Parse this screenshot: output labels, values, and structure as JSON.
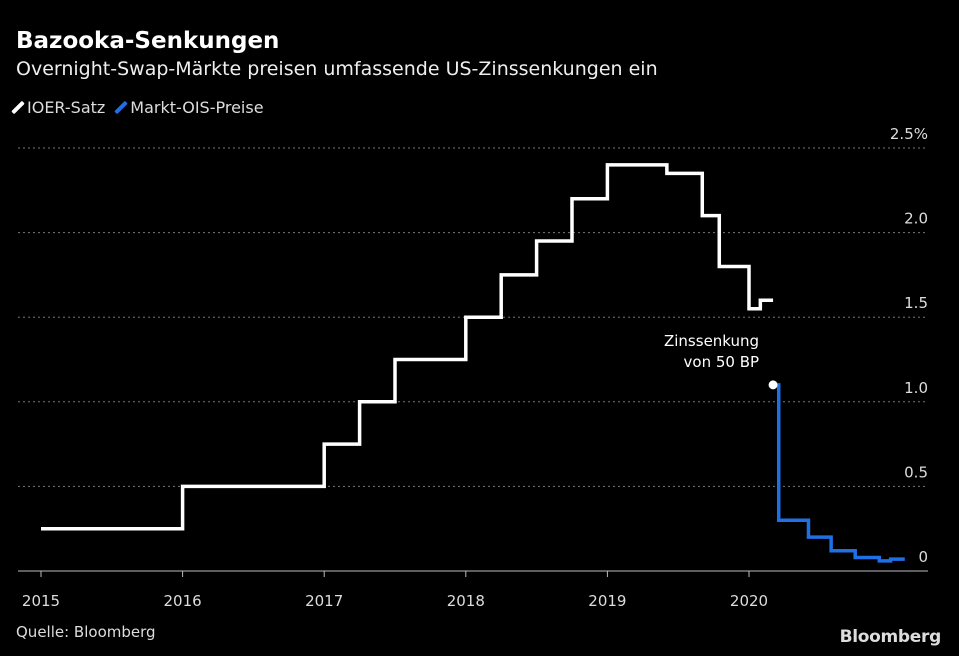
{
  "chart_data": {
    "type": "line",
    "title": "Bazooka-Senkungen",
    "subtitle": "Overnight-Swap-Märkte preisen umfassende US-Zinssenkungen ein",
    "xlabel": "",
    "ylabel": "",
    "x_ticks": [
      "2015",
      "2016",
      "2017",
      "2018",
      "2019",
      "2020"
    ],
    "y_ticks": [
      "0",
      "0.5",
      "1.0",
      "1.5",
      "2.0",
      "2.5%"
    ],
    "xlim": [
      2015.0,
      2021.25
    ],
    "ylim": [
      0,
      2.5
    ],
    "grid": true,
    "legend_position": "top-left",
    "series": [
      {
        "name": "IOER-Satz",
        "color": "#ffffff",
        "step": true,
        "x": [
          2015.0,
          2015.92,
          2016.0,
          2016.96,
          2017.0,
          2017.21,
          2017.25,
          2017.45,
          2017.5,
          2017.96,
          2018.0,
          2018.21,
          2018.25,
          2018.46,
          2018.5,
          2018.71,
          2018.75,
          2018.96,
          2019.0,
          2019.38,
          2019.42,
          2019.63,
          2019.67,
          2019.75,
          2019.79,
          2019.96,
          2020.0,
          2020.08,
          2020.17
        ],
        "values": [
          0.25,
          0.25,
          0.5,
          0.5,
          0.75,
          0.75,
          1.0,
          1.0,
          1.25,
          1.25,
          1.5,
          1.5,
          1.75,
          1.75,
          1.95,
          1.95,
          2.2,
          2.2,
          2.4,
          2.4,
          2.35,
          2.35,
          2.1,
          2.1,
          1.8,
          1.8,
          1.55,
          1.6,
          1.6
        ]
      },
      {
        "name": "Markt-OIS-Preise",
        "color": "#1f6fe5",
        "step": true,
        "x": [
          2020.17,
          2020.21,
          2020.33,
          2020.42,
          2020.58,
          2020.75,
          2020.92,
          2021.0,
          2021.1
        ],
        "values": [
          1.1,
          0.3,
          0.3,
          0.2,
          0.12,
          0.08,
          0.06,
          0.07,
          0.07
        ]
      }
    ],
    "annotations": [
      {
        "line1": "Zinssenkung",
        "line2": "von 50 BP",
        "x": 2020.17,
        "y": 1.1
      }
    ]
  },
  "legend": {
    "items": [
      {
        "label": "IOER-Satz",
        "color": "#ffffff"
      },
      {
        "label": "Markt-OIS-Preise",
        "color": "#1f6fe5"
      }
    ]
  },
  "footer": {
    "source": "Quelle: Bloomberg",
    "logo": "Bloomberg"
  }
}
